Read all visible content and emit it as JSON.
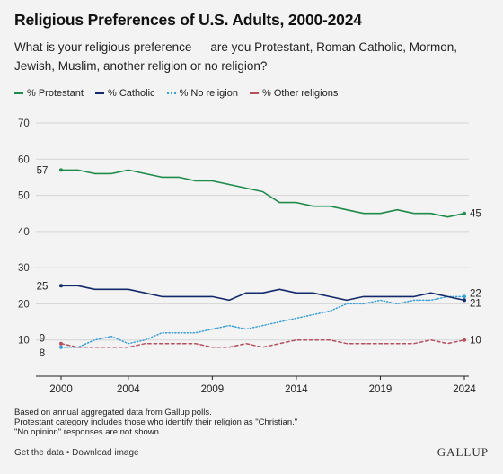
{
  "header": {
    "title": "Religious Preferences of U.S. Adults, 2000-2024",
    "subtitle": "What is your religious preference — are you Protestant, Roman Catholic, Mormon, Jewish, Muslim, another religion or no religion?"
  },
  "footer": {
    "note1": "Based on annual aggregated data from Gallup polls.",
    "note2": "Protestant category includes those who identify their religion as \"Christian.\"",
    "note3": "\"No opinion\" responses are not shown.",
    "get_data": "Get the data",
    "separator": " • ",
    "download": "Download image",
    "brand": "GALLUP"
  },
  "colors": {
    "protestant": "#1e8a4c",
    "catholic": "#14296b",
    "no_religion": "#3a9fd6",
    "other": "#b5505f",
    "grid": "#d4d4d4"
  },
  "chart_data": {
    "type": "line",
    "x": [
      2000,
      2001,
      2002,
      2003,
      2004,
      2005,
      2006,
      2007,
      2008,
      2009,
      2010,
      2011,
      2012,
      2013,
      2014,
      2015,
      2016,
      2017,
      2018,
      2019,
      2020,
      2021,
      2022,
      2023,
      2024
    ],
    "x_tick_labels": [
      "2000",
      "2004",
      "2009",
      "2014",
      "2019",
      "2024"
    ],
    "x_ticks": [
      2000,
      2004,
      2009,
      2014,
      2019,
      2024
    ],
    "y_ticks": [
      10,
      20,
      30,
      40,
      50,
      60,
      70
    ],
    "y_tick_labels": [
      "10",
      "20",
      "30",
      "40",
      "50",
      "60",
      "70"
    ],
    "ylim": [
      0,
      70
    ],
    "xlim": [
      2000,
      2024
    ],
    "grid": "horizontal",
    "legend_position": "top-left",
    "series": [
      {
        "name": "% Protestant",
        "key": "protestant",
        "style": "solid",
        "values": [
          57,
          57,
          56,
          56,
          57,
          56,
          55,
          55,
          54,
          54,
          53,
          52,
          51,
          48,
          48,
          47,
          47,
          46,
          45,
          45,
          46,
          45,
          45,
          44,
          45
        ],
        "start_label": "57",
        "end_label": "45"
      },
      {
        "name": "% Catholic",
        "key": "catholic",
        "style": "solid",
        "values": [
          25,
          25,
          24,
          24,
          24,
          23,
          22,
          22,
          22,
          22,
          21,
          23,
          23,
          24,
          23,
          23,
          22,
          21,
          22,
          22,
          22,
          22,
          23,
          22,
          21
        ],
        "start_label": "25",
        "end_label": "21"
      },
      {
        "name": "% No religion",
        "key": "no_religion",
        "style": "dotted",
        "values": [
          8,
          8,
          10,
          11,
          9,
          10,
          12,
          12,
          12,
          13,
          14,
          13,
          14,
          15,
          16,
          17,
          18,
          20,
          20,
          21,
          20,
          21,
          21,
          22,
          22
        ],
        "start_label": "8",
        "end_label": "22"
      },
      {
        "name": "% Other religions",
        "key": "other",
        "style": "dashed",
        "values": [
          9,
          8,
          8,
          8,
          8,
          9,
          9,
          9,
          9,
          8,
          8,
          9,
          8,
          9,
          10,
          10,
          10,
          9,
          9,
          9,
          9,
          9,
          10,
          9,
          10
        ],
        "start_label": "9",
        "end_label": "10"
      }
    ]
  }
}
